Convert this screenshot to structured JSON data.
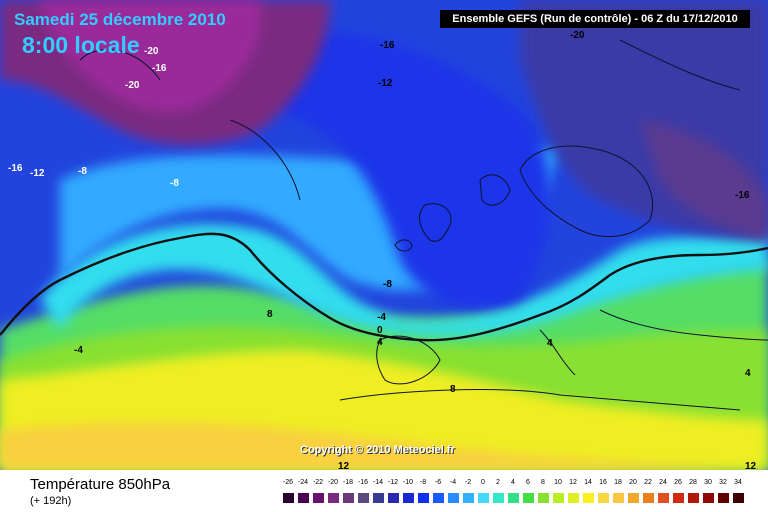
{
  "header": {
    "date": "Samedi 25 décembre 2010",
    "time": "8:00 locale",
    "run_info": "Ensemble GEFS (Run de contrôle)  -  06 Z du 17/12/2010"
  },
  "copyright": "Copyright © 2010 Meteociel.fr",
  "footer": {
    "title": "Température 850hPa",
    "subtitle": "(+ 192h)"
  },
  "map_labels": {
    "l1": "-20",
    "l2": "-16",
    "l3": "-20",
    "l4": "-16",
    "l5": "-20",
    "l6": "-12",
    "l7": "-16",
    "l8": "-12",
    "l9": "-8",
    "l10": "-8",
    "l11": "-16",
    "l12": "-8",
    "l13": "-4",
    "l14": "-4",
    "l15": "0",
    "l16": "4",
    "l17": "8",
    "l18": "4",
    "l19": "8",
    "l20": "4",
    "l21": "12",
    "l22": "12"
  },
  "scale": {
    "ticks": [
      "-26",
      "-24",
      "-22",
      "-20",
      "-18",
      "-16",
      "-14",
      "-12",
      "-10",
      "-8",
      "-6",
      "-4",
      "-2",
      "0",
      "2",
      "4",
      "6",
      "8",
      "10",
      "12",
      "14",
      "16",
      "18",
      "20",
      "22",
      "24",
      "26",
      "28",
      "30",
      "32",
      "34"
    ],
    "colors": [
      "#2a0030",
      "#4a0050",
      "#6a1070",
      "#7a2a80",
      "#6a3a78",
      "#5a4a80",
      "#3a3a90",
      "#2a2ab0",
      "#1a2ad0",
      "#1030f0",
      "#1a5aff",
      "#2a8aff",
      "#33b0ff",
      "#44d8ff",
      "#33e8c8",
      "#33e088",
      "#44dd44",
      "#88e030",
      "#bbee22",
      "#ddf022",
      "#f8f020",
      "#f8d840",
      "#f8c840",
      "#f0a830",
      "#e88020",
      "#e05020",
      "#d02a10",
      "#b01808",
      "#900808",
      "#600000",
      "#400000"
    ]
  }
}
